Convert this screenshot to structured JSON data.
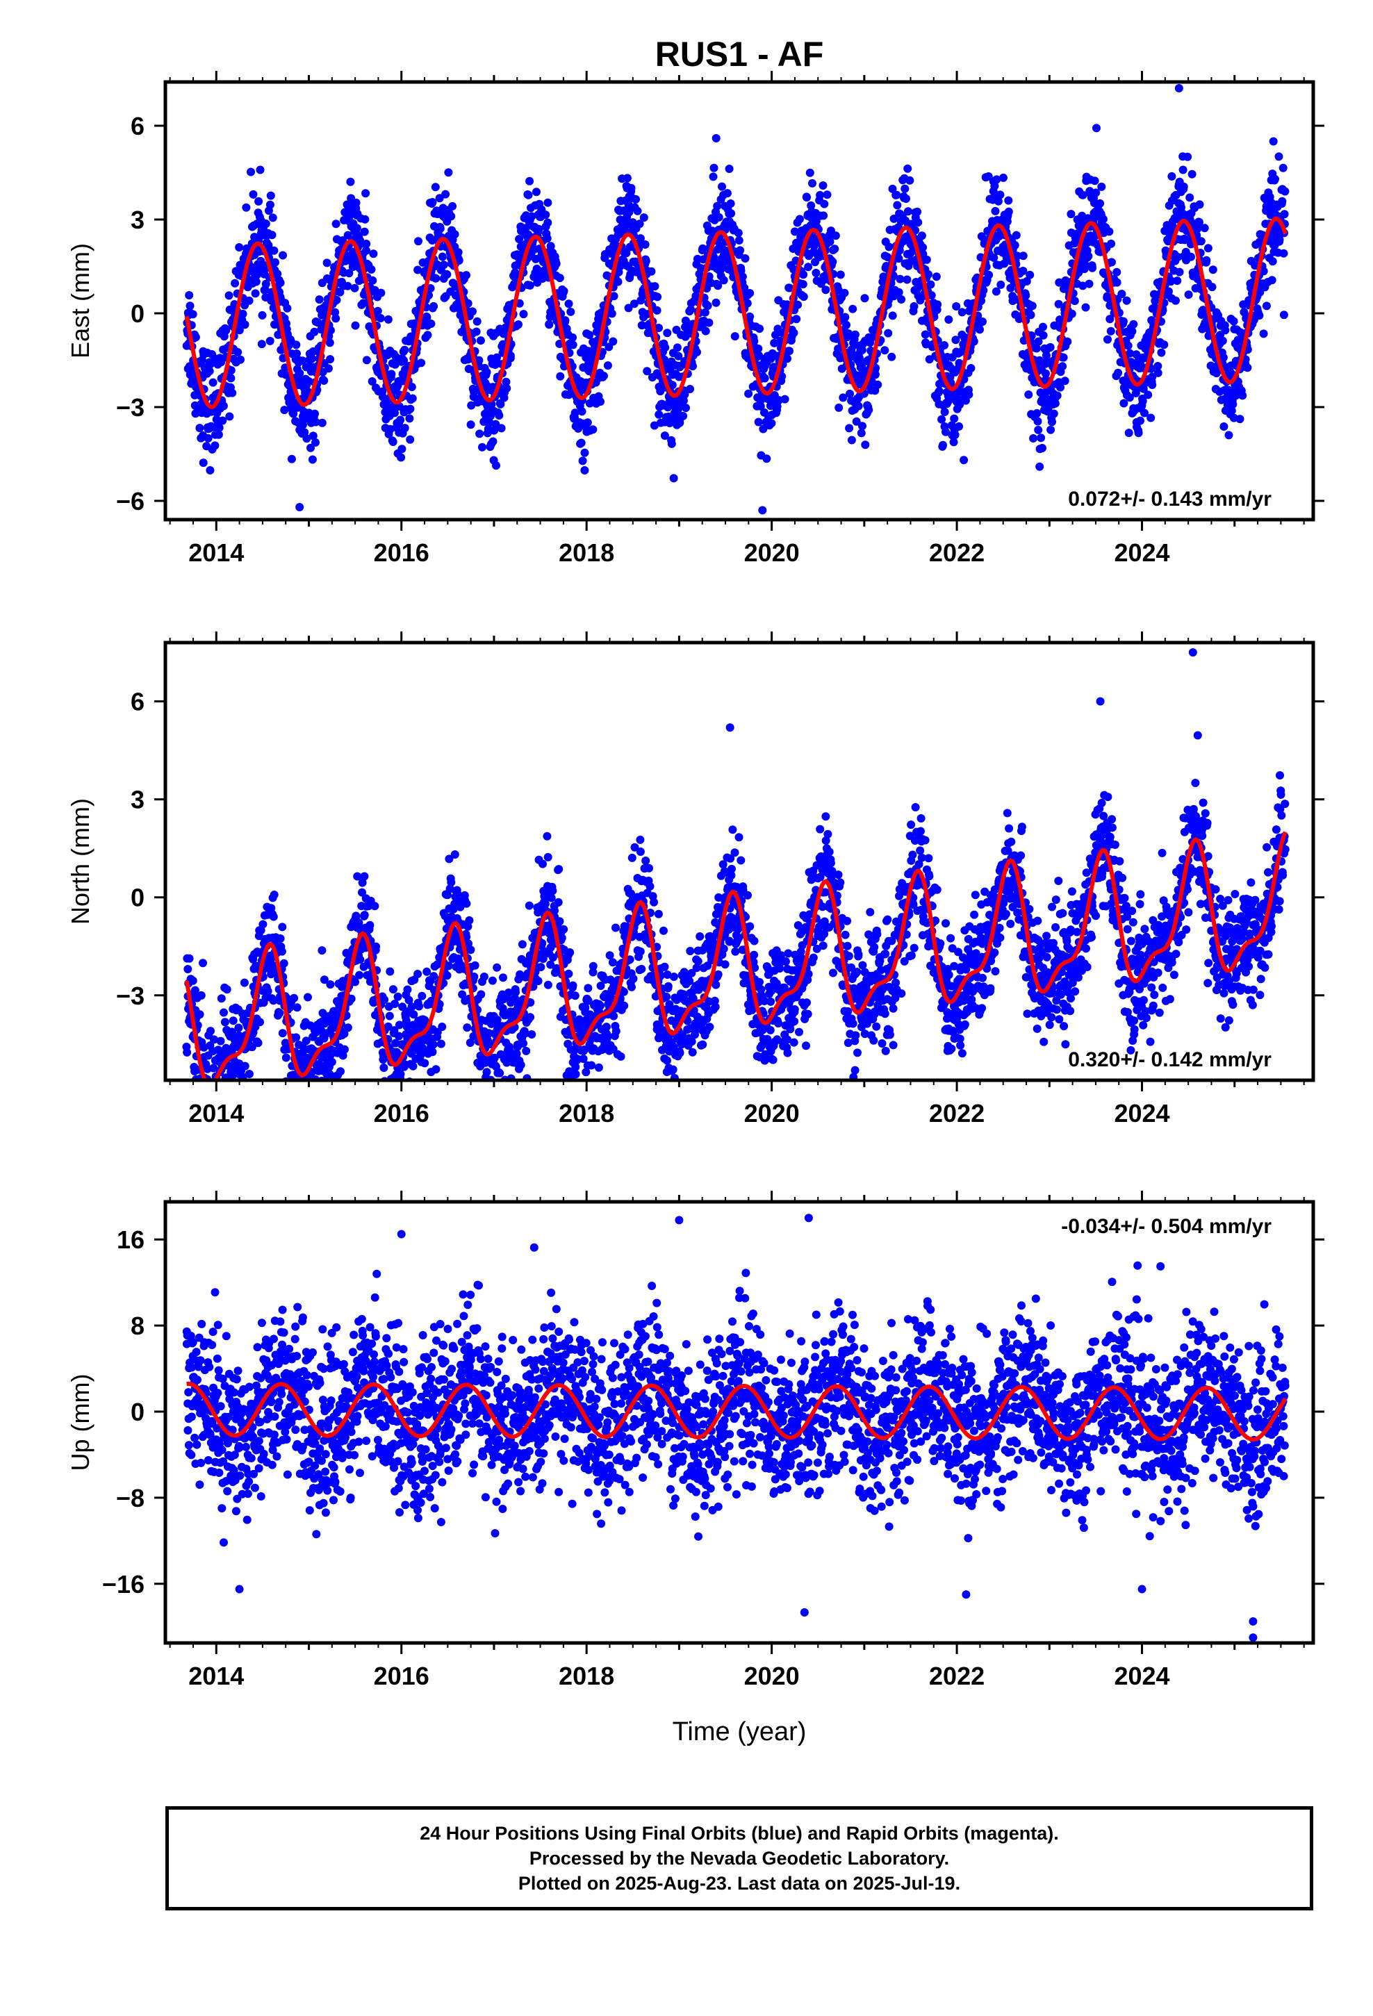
{
  "title": "RUS1 - AF",
  "xlabel": "Time (year)",
  "colors": {
    "data_points": "#0000ff",
    "model_curve": "#ff0000",
    "frame": "#000000"
  },
  "chart_data": [
    {
      "type": "scatter",
      "panel": "east",
      "ylabel": "East (mm)",
      "xlim": [
        2013.45,
        2025.85
      ],
      "ylim": [
        -6.6,
        7.4
      ],
      "yticks": [
        -6,
        -3,
        0,
        3,
        6
      ],
      "xticks": [
        2014,
        2016,
        2018,
        2020,
        2022,
        2024
      ],
      "rate_text": "0.072+/- 0.143 mm/yr",
      "rate_position": "bottom-right",
      "grid": false,
      "series": [
        {
          "role": "observations",
          "marker": "dot",
          "x": [
            2013.7,
            2014.0,
            2014.3,
            2014.45,
            2014.7,
            2015.0,
            2015.3,
            2015.45,
            2015.7,
            2016.0,
            2016.3,
            2016.45,
            2016.7,
            2017.0,
            2017.3,
            2017.45,
            2017.7,
            2018.0,
            2018.3,
            2018.45,
            2018.7,
            2019.0,
            2019.3,
            2019.45,
            2019.7,
            2020.0,
            2020.3,
            2020.45,
            2020.7,
            2021.0,
            2021.3,
            2021.45,
            2021.7,
            2022.0,
            2022.3,
            2022.45,
            2022.7,
            2023.0,
            2023.3,
            2023.45,
            2023.7,
            2024.0,
            2024.3,
            2024.45,
            2024.7,
            2025.0,
            2025.3,
            2025.5
          ],
          "y": [
            -0.6,
            -2.6,
            1.2,
            2.6,
            0.1,
            -2.6,
            1.3,
            2.7,
            0.2,
            -2.5,
            1.4,
            2.8,
            0.3,
            -2.4,
            1.5,
            2.8,
            0.4,
            -2.3,
            1.6,
            2.9,
            0.5,
            -2.2,
            1.7,
            3.0,
            0.6,
            -2.1,
            1.8,
            3.0,
            0.7,
            -2.0,
            1.9,
            3.1,
            0.8,
            -1.9,
            2.0,
            3.2,
            0.9,
            -1.8,
            2.1,
            3.2,
            1.0,
            -1.8,
            2.2,
            3.3,
            1.1,
            -1.7,
            2.3,
            2.5
          ]
        },
        {
          "role": "model",
          "marker": "line"
        }
      ],
      "model": {
        "offset": 0.0,
        "rate": 0.072,
        "annual_amp": 2.6,
        "annual_phase_year": 0.45,
        "semiannual_amp": 0.0
      },
      "scatter_spread": 0.9,
      "scatter_count": 3400,
      "outliers": [
        [
          2024.4,
          7.2
        ],
        [
          2025.42,
          5.5
        ],
        [
          2014.9,
          -6.2
        ],
        [
          2019.9,
          -6.3
        ],
        [
          2019.4,
          5.6
        ]
      ]
    },
    {
      "type": "scatter",
      "panel": "north",
      "ylabel": "North (mm)",
      "xlim": [
        2013.45,
        2025.85
      ],
      "ylim": [
        -5.6,
        7.8
      ],
      "yticks": [
        -3,
        0,
        3,
        6
      ],
      "xticks": [
        2014,
        2016,
        2018,
        2020,
        2022,
        2024
      ],
      "rate_text": "0.320+/- 0.142 mm/yr",
      "rate_position": "bottom-right",
      "grid": false,
      "series": [
        {
          "role": "observations",
          "marker": "dot"
        },
        {
          "role": "model",
          "marker": "line"
        }
      ],
      "model": {
        "offset": -2.3,
        "rate": 0.32,
        "annual_amp": 1.8,
        "annual_phase_year": 0.55,
        "semiannual_amp": 0.7,
        "semiannual_phase_year": 0.1
      },
      "scatter_spread": 0.9,
      "scatter_count": 3400,
      "outliers": [
        [
          2024.55,
          7.5
        ],
        [
          2023.55,
          6.0
        ],
        [
          2019.55,
          5.2
        ],
        [
          2021.9,
          -4.7
        ],
        [
          2014.2,
          -5.4
        ],
        [
          2014.85,
          -5.1
        ]
      ]
    },
    {
      "type": "scatter",
      "panel": "up",
      "ylabel": "Up (mm)",
      "xlim": [
        2013.45,
        2025.85
      ],
      "ylim": [
        -21.5,
        19.5
      ],
      "yticks": [
        -16,
        -8,
        0,
        8,
        16
      ],
      "xticks": [
        2014,
        2016,
        2018,
        2020,
        2022,
        2024
      ],
      "rate_text": "-0.034+/- 0.504 mm/yr",
      "rate_position": "top-right",
      "grid": false,
      "series": [
        {
          "role": "observations",
          "marker": "dot"
        },
        {
          "role": "model",
          "marker": "line"
        }
      ],
      "model": {
        "offset": 0.0,
        "rate": -0.034,
        "annual_amp": 2.4,
        "annual_phase_year": 0.7,
        "semiannual_amp": 0.0
      },
      "scatter_spread": 3.6,
      "scatter_count": 3400,
      "outliers": [
        [
          2016.0,
          16.5
        ],
        [
          2019.0,
          17.8
        ],
        [
          2020.4,
          18.0
        ],
        [
          2025.2,
          -21.0
        ],
        [
          2025.2,
          -19.5
        ],
        [
          2022.1,
          -17.0
        ],
        [
          2014.25,
          -16.5
        ],
        [
          2024.0,
          -16.5
        ],
        [
          2024.2,
          13.5
        ]
      ]
    }
  ],
  "footer": {
    "line1": "24 Hour Positions Using Final Orbits (blue) and Rapid Orbits (magenta).",
    "line2": "Processed by the Nevada Geodetic Laboratory.",
    "line3": "Plotted on 2025-Aug-23. Last data on 2025-Jul-19."
  }
}
